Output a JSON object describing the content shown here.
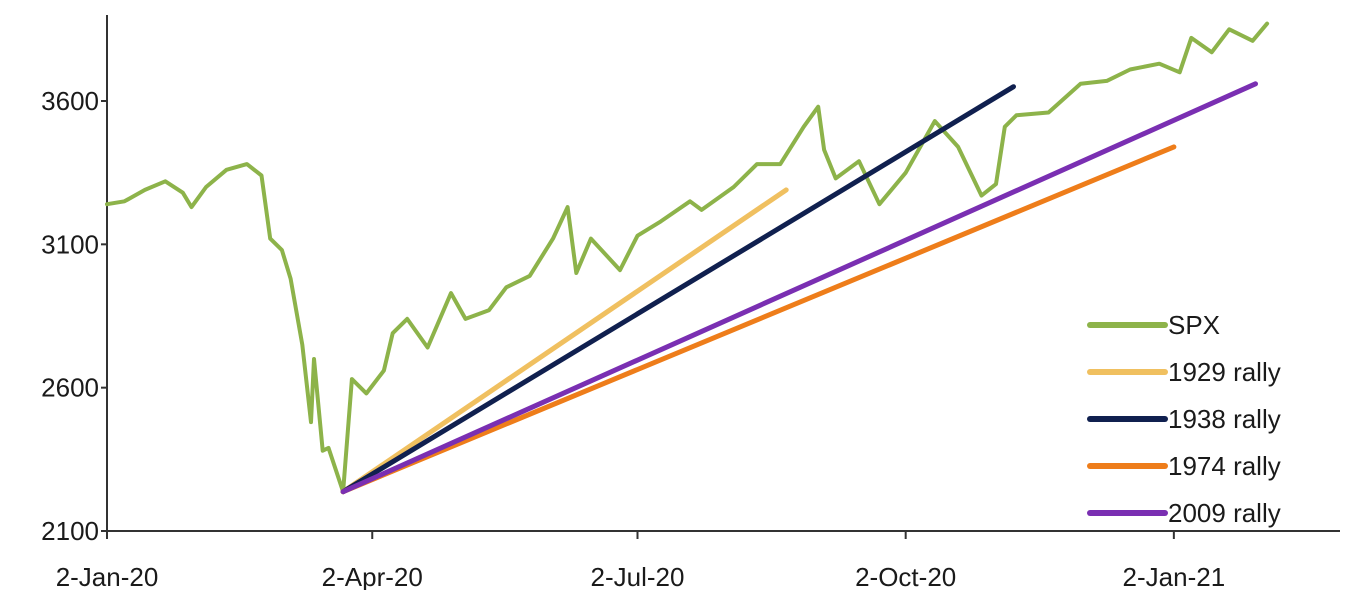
{
  "chart_data": {
    "type": "line",
    "title": "",
    "xlabel": "",
    "ylabel": "",
    "ylim": [
      2100,
      3900
    ],
    "xlim": [
      "2020-01-02",
      "2021-02-28"
    ],
    "yticks": [
      {
        "value": 2100,
        "label": "2100"
      },
      {
        "value": 2600,
        "label": "2600"
      },
      {
        "value": 3100,
        "label": "3100"
      },
      {
        "value": 3600,
        "label": "3600"
      }
    ],
    "xticks": [
      {
        "date": "2020-01-02",
        "label": "2-Jan-20"
      },
      {
        "date": "2020-04-02",
        "label": "2-Apr-20"
      },
      {
        "date": "2020-07-02",
        "label": "2-Jul-20"
      },
      {
        "date": "2020-10-02",
        "label": "2-Oct-20"
      },
      {
        "date": "2021-01-02",
        "label": "2-Jan-21"
      }
    ],
    "grid": false,
    "legend_position": "bottom-right",
    "series": [
      {
        "name": "SPX",
        "color": "#8DB34A",
        "points": [
          [
            "2020-01-02",
            3240
          ],
          [
            "2020-01-08",
            3250
          ],
          [
            "2020-01-15",
            3290
          ],
          [
            "2020-01-22",
            3320
          ],
          [
            "2020-01-28",
            3280
          ],
          [
            "2020-01-31",
            3230
          ],
          [
            "2020-02-05",
            3300
          ],
          [
            "2020-02-12",
            3360
          ],
          [
            "2020-02-19",
            3380
          ],
          [
            "2020-02-24",
            3340
          ],
          [
            "2020-02-27",
            3120
          ],
          [
            "2020-03-02",
            3080
          ],
          [
            "2020-03-05",
            2980
          ],
          [
            "2020-03-09",
            2750
          ],
          [
            "2020-03-12",
            2480
          ],
          [
            "2020-03-13",
            2700
          ],
          [
            "2020-03-16",
            2380
          ],
          [
            "2020-03-18",
            2390
          ],
          [
            "2020-03-23",
            2237
          ],
          [
            "2020-03-26",
            2630
          ],
          [
            "2020-03-31",
            2580
          ],
          [
            "2020-04-06",
            2660
          ],
          [
            "2020-04-09",
            2790
          ],
          [
            "2020-04-14",
            2840
          ],
          [
            "2020-04-21",
            2740
          ],
          [
            "2020-04-29",
            2930
          ],
          [
            "2020-05-04",
            2840
          ],
          [
            "2020-05-12",
            2870
          ],
          [
            "2020-05-18",
            2950
          ],
          [
            "2020-05-26",
            2990
          ],
          [
            "2020-06-03",
            3120
          ],
          [
            "2020-06-08",
            3230
          ],
          [
            "2020-06-11",
            3000
          ],
          [
            "2020-06-16",
            3120
          ],
          [
            "2020-06-26",
            3010
          ],
          [
            "2020-07-02",
            3130
          ],
          [
            "2020-07-10",
            3180
          ],
          [
            "2020-07-20",
            3250
          ],
          [
            "2020-07-24",
            3220
          ],
          [
            "2020-08-04",
            3300
          ],
          [
            "2020-08-12",
            3380
          ],
          [
            "2020-08-20",
            3380
          ],
          [
            "2020-08-28",
            3510
          ],
          [
            "2020-09-02",
            3580
          ],
          [
            "2020-09-04",
            3430
          ],
          [
            "2020-09-08",
            3330
          ],
          [
            "2020-09-16",
            3390
          ],
          [
            "2020-09-23",
            3240
          ],
          [
            "2020-10-02",
            3350
          ],
          [
            "2020-10-12",
            3530
          ],
          [
            "2020-10-20",
            3440
          ],
          [
            "2020-10-28",
            3270
          ],
          [
            "2020-11-02",
            3310
          ],
          [
            "2020-11-05",
            3510
          ],
          [
            "2020-11-09",
            3550
          ],
          [
            "2020-11-20",
            3560
          ],
          [
            "2020-12-01",
            3660
          ],
          [
            "2020-12-10",
            3670
          ],
          [
            "2020-12-18",
            3710
          ],
          [
            "2020-12-28",
            3730
          ],
          [
            "2021-01-04",
            3700
          ],
          [
            "2021-01-08",
            3820
          ],
          [
            "2021-01-15",
            3770
          ],
          [
            "2021-01-21",
            3850
          ],
          [
            "2021-01-29",
            3810
          ],
          [
            "2021-02-03",
            3870
          ]
        ]
      },
      {
        "name": "1929 rally",
        "color": "#F0C060",
        "points": [
          [
            "2020-03-23",
            2237
          ],
          [
            "2020-08-22",
            3290
          ]
        ]
      },
      {
        "name": "1938 rally",
        "color": "#10204F",
        "points": [
          [
            "2020-03-23",
            2237
          ],
          [
            "2020-11-08",
            3650
          ]
        ]
      },
      {
        "name": "1974 rally",
        "color": "#EE7D1A",
        "points": [
          [
            "2020-03-23",
            2237
          ],
          [
            "2021-01-02",
            3440
          ]
        ]
      },
      {
        "name": "2009 rally",
        "color": "#7A2FB2",
        "points": [
          [
            "2020-03-23",
            2237
          ],
          [
            "2021-01-30",
            3660
          ]
        ]
      }
    ]
  }
}
